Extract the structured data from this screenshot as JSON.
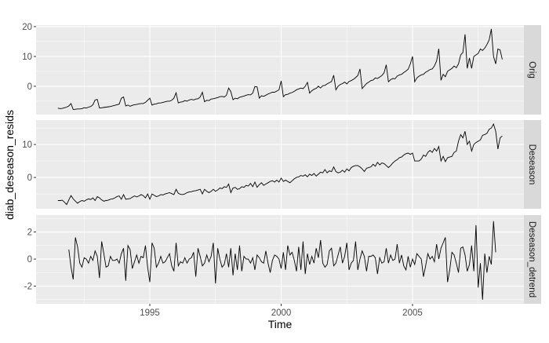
{
  "chart_data": {
    "type": "line",
    "layout": "faceted-rows",
    "xlabel": "Time",
    "ylabel": "diab_deseason_resids",
    "xlim": [
      1990.67,
      2009.24
    ],
    "x_ticks": [
      1995,
      2000,
      2005
    ],
    "x_tick_labels": [
      "1995",
      "2000",
      "2005"
    ],
    "grid": true,
    "colors": {
      "panel": "#ebebeb",
      "strip": "#d9d9d9",
      "grid": "#ffffff",
      "line": "#000000",
      "axis_text": "#4d4d4d"
    },
    "facets": [
      {
        "name": "Orig",
        "start": "1991-07",
        "frequency": 12,
        "ylim": [
          -9.5,
          20.5
        ],
        "y_ticks": [
          0,
          10,
          20
        ],
        "y_tick_labels": [
          "0",
          "10",
          "20"
        ],
        "values": [
          -7.3,
          -7.5,
          -7.4,
          -7.2,
          -7.0,
          -6.6,
          -5.8,
          -7.8,
          -7.7,
          -7.6,
          -7.6,
          -7.5,
          -7.2,
          -7.3,
          -7.0,
          -6.8,
          -6.2,
          -4.6,
          -4.4,
          -7.3,
          -7.2,
          -7.1,
          -7.0,
          -6.9,
          -6.8,
          -6.6,
          -6.4,
          -6.2,
          -6.0,
          -4.0,
          -3.6,
          -6.6,
          -6.3,
          -6.7,
          -6.4,
          -6.2,
          -6.1,
          -5.9,
          -5.8,
          -5.8,
          -5.4,
          -4.7,
          -4.0,
          -6.3,
          -6.0,
          -5.9,
          -5.6,
          -5.6,
          -5.4,
          -5.2,
          -5.0,
          -5.0,
          -4.7,
          -4.0,
          -2.2,
          -5.6,
          -5.3,
          -5.2,
          -4.8,
          -5.0,
          -4.6,
          -4.4,
          -4.6,
          -4.3,
          -4.2,
          -3.6,
          -2.0,
          -5.2,
          -4.7,
          -4.8,
          -4.3,
          -4.2,
          -4.0,
          -3.8,
          -3.5,
          -3.4,
          -3.6,
          -3.0,
          -0.6,
          -1.8,
          -4.5,
          -4.0,
          -4.2,
          -3.7,
          -3.5,
          -3.3,
          -3.0,
          -2.8,
          -2.9,
          -2.3,
          -0.1,
          -0.2,
          -4.0,
          -3.2,
          -3.4,
          -3.0,
          -2.6,
          -2.3,
          -2.0,
          -2.0,
          -1.6,
          -1.2,
          1.8,
          -3.5,
          -2.8,
          -2.7,
          -2.3,
          -2.1,
          -1.7,
          -1.2,
          -0.9,
          -0.6,
          -0.8,
          0.0,
          1.3,
          -2.3,
          -1.5,
          -1.0,
          -0.7,
          0.0,
          -0.6,
          0.2,
          0.3,
          0.8,
          1.2,
          1.6,
          3.7,
          -1.2,
          0.0,
          0.6,
          0.9,
          1.4,
          0.8,
          1.6,
          1.9,
          2.3,
          2.9,
          3.6,
          5.8,
          -0.8,
          0.1,
          0.9,
          1.4,
          1.9,
          2.1,
          2.8,
          2.6,
          3.1,
          3.6,
          4.5,
          7.2,
          1.5,
          2.2,
          2.6,
          2.5,
          3.4,
          3.8,
          4.0,
          4.6,
          5.1,
          5.7,
          7.5,
          10.0,
          1.5,
          2.8,
          3.4,
          3.8,
          4.0,
          4.7,
          5.1,
          5.6,
          5.8,
          6.8,
          8.5,
          12.6,
          2.0,
          4.0,
          3.2,
          5.0,
          5.5,
          6.0,
          6.8,
          6.2,
          7.5,
          10.5,
          11.3,
          17.4,
          6.0,
          9.5,
          6.0,
          10.0,
          10.5,
          11.0,
          12.5,
          12.0,
          12.8,
          14.0,
          15.5,
          19.2,
          10.0,
          7.5,
          12.5,
          12.2,
          9.0
        ]
      },
      {
        "name": "Deseason",
        "start": "1991-07",
        "frequency": 12,
        "ylim": [
          -9.5,
          17.4
        ],
        "y_ticks": [
          0,
          10
        ],
        "y_tick_labels": [
          "0",
          "10"
        ],
        "values": [
          -7.0,
          -7.0,
          -6.9,
          -7.5,
          -8.2,
          -6.8,
          -5.5,
          -6.5,
          -7.2,
          -7.8,
          -7.3,
          -7.0,
          -7.2,
          -6.8,
          -6.5,
          -6.7,
          -6.2,
          -7.0,
          -5.8,
          -6.2,
          -6.8,
          -7.2,
          -7.0,
          -6.9,
          -6.6,
          -6.5,
          -6.2,
          -5.8,
          -5.6,
          -6.6,
          -5.2,
          -6.6,
          -6.5,
          -6.4,
          -6.0,
          -5.6,
          -5.9,
          -5.6,
          -5.2,
          -5.5,
          -6.2,
          -5.0,
          -6.6,
          -5.0,
          -5.4,
          -5.8,
          -5.6,
          -5.2,
          -5.3,
          -5.0,
          -4.8,
          -4.6,
          -4.9,
          -5.2,
          -3.6,
          -4.8,
          -5.1,
          -5.2,
          -5.0,
          -4.6,
          -4.4,
          -4.3,
          -4.1,
          -4.0,
          -3.8,
          -3.6,
          -5.0,
          -3.6,
          -4.2,
          -4.6,
          -4.2,
          -3.6,
          -4.2,
          -3.8,
          -3.2,
          -3.4,
          -2.8,
          -3.0,
          -2.0,
          -4.6,
          -3.2,
          -3.0,
          -3.6,
          -3.4,
          -2.8,
          -3.0,
          -2.4,
          -2.6,
          -1.8,
          -2.8,
          -1.4,
          -3.0,
          -2.2,
          -1.6,
          -2.4,
          -2.0,
          -1.6,
          -1.2,
          -1.0,
          -1.4,
          -0.8,
          -1.4,
          -0.2,
          -1.2,
          -0.8,
          -1.2,
          -1.6,
          -1.0,
          -0.4,
          0.0,
          0.2,
          0.6,
          0.4,
          0.8,
          0.2,
          1.0,
          0.6,
          1.2,
          0.4,
          1.0,
          1.6,
          1.4,
          2.4,
          1.4,
          2.0,
          1.8,
          3.2,
          1.8,
          1.4,
          1.6,
          2.2,
          1.6,
          2.6,
          2.0,
          3.0,
          3.4,
          3.6,
          3.6,
          3.2,
          2.6,
          1.8,
          2.8,
          3.0,
          3.2,
          4.0,
          3.4,
          4.6,
          3.8,
          4.4,
          4.2,
          3.6,
          3.0,
          3.6,
          4.4,
          5.0,
          5.4,
          6.0,
          6.2,
          6.8,
          7.2,
          7.4,
          7.0,
          7.4,
          5.0,
          5.0,
          5.0,
          5.6,
          6.8,
          6.4,
          7.6,
          8.2,
          7.6,
          8.8,
          8.0,
          9.4,
          5.0,
          6.4,
          4.8,
          6.0,
          6.2,
          6.4,
          7.6,
          8.0,
          11.0,
          13.0,
          12.0,
          14.0,
          10.0,
          11.0,
          8.0,
          10.0,
          10.6,
          11.0,
          11.4,
          12.8,
          13.0,
          13.4,
          14.6,
          15.0,
          16.2,
          14.0,
          8.6,
          12.0,
          12.6
        ]
      },
      {
        "name": "Deseason_detrend",
        "start": "1991-12",
        "frequency": 12,
        "ylim": [
          -3.3,
          3.25
        ],
        "y_ticks": [
          -2,
          0,
          2
        ],
        "y_tick_labels": [
          "-2",
          "0",
          "2"
        ],
        "values": [
          0.7,
          -0.6,
          -1.5,
          1.6,
          0.9,
          -0.3,
          -0.6,
          0.1,
          0.0,
          -0.3,
          0.2,
          -0.1,
          0.6,
          0.2,
          -1.4,
          1.3,
          0.4,
          -0.6,
          -0.5,
          0.2,
          -0.1,
          -0.1,
          0.0,
          -0.3,
          0.4,
          0.8,
          -1.6,
          1.0,
          0.7,
          -0.7,
          -0.2,
          0.3,
          -0.3,
          0.2,
          0.1,
          1.0,
          -0.6,
          -1.7,
          1.2,
          0.8,
          -0.6,
          -0.3,
          0.2,
          -0.3,
          -0.2,
          0.1,
          0.4,
          -0.5,
          -0.9,
          1.2,
          -0.5,
          -0.2,
          -0.3,
          0.1,
          -0.3,
          0.0,
          0.1,
          0.5,
          -1.3,
          0.8,
          0.2,
          -0.5,
          -0.3,
          0.3,
          -0.2,
          0.2,
          1.2,
          -1.8,
          0.8,
          0.0,
          -0.6,
          -0.4,
          0.4,
          -0.6,
          0.8,
          -1.2,
          0.4,
          -0.8,
          1.0,
          -0.9,
          0.2,
          0.0,
          0.0,
          -0.3,
          0.1,
          -0.8,
          0.3,
          0.1,
          -0.2,
          -0.3,
          0.6,
          -0.3,
          -1.0,
          -0.1,
          0.3,
          0.2,
          0.0,
          -0.7,
          0.5,
          -0.8,
          1.0,
          0.3,
          0.5,
          -0.1,
          -0.9,
          0.9,
          -0.8,
          1.3,
          -1.1,
          0.4,
          -0.4,
          0.2,
          -0.3,
          0.8,
          0.1,
          1.4,
          -0.3,
          -0.6,
          -0.4,
          0.6,
          0.8,
          -0.5,
          -0.3,
          0.3,
          0.9,
          -0.3,
          0.2,
          1.2,
          -0.8,
          -0.3,
          -0.1,
          1.3,
          -0.8,
          0.0,
          0.6,
          0.2,
          -0.9,
          0.2,
          0.2,
          0.3,
          0.1,
          -1.1,
          0.1,
          -0.3,
          -0.2,
          0.8,
          -0.3,
          0.3,
          -0.1,
          0.0,
          1.1,
          -0.3,
          0.3,
          -0.5,
          -0.8,
          0.2,
          -0.6,
          0.0,
          -0.4,
          0.4,
          0.2,
          0.0,
          -1.3,
          -0.5,
          0.4,
          0.0,
          0.2,
          -0.2,
          1.1,
          0.0,
          0.8,
          1.2,
          1.6,
          -1.7,
          -0.8,
          0.5,
          0.3,
          -0.3,
          -1.0,
          0.8,
          0.9,
          0.3,
          -0.9,
          -0.4,
          1.0,
          -0.9,
          2.5,
          -2.1,
          -0.3,
          -3.0,
          0.4,
          -1.0,
          0.2,
          -0.4,
          2.8,
          0.5
        ]
      }
    ]
  }
}
